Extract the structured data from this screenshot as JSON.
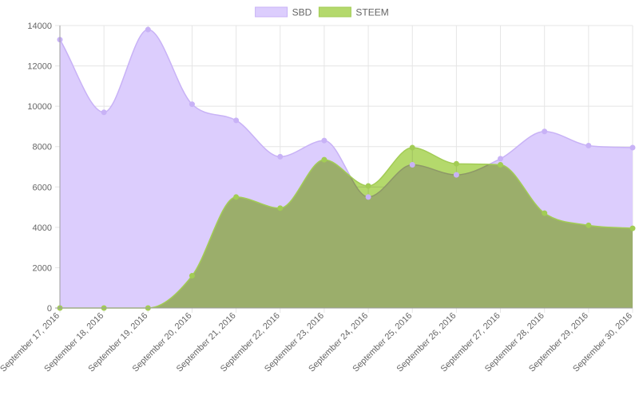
{
  "chart_data": {
    "type": "area",
    "categories": [
      "September 17, 2016",
      "September 18, 2016",
      "September 19, 2016",
      "September 20, 2016",
      "September 21, 2016",
      "September 22, 2016",
      "September 23, 2016",
      "September 24, 2016",
      "September 25, 2016",
      "September 26, 2016",
      "September 27, 2016",
      "September 28, 2016",
      "September 29, 2016",
      "September 30, 2016"
    ],
    "series": [
      {
        "name": "SBD",
        "values": [
          13300,
          9700,
          13800,
          10100,
          9300,
          7500,
          8300,
          5500,
          7100,
          6600,
          7400,
          8750,
          8050,
          7950
        ],
        "fill": "#dccdfd",
        "stroke": "#c8b2f6"
      },
      {
        "name": "STEEM",
        "values": [
          0,
          0,
          0,
          1600,
          5500,
          4950,
          7350,
          6050,
          7950,
          7150,
          7100,
          4700,
          4100,
          3950
        ],
        "fill": "#b4d96c",
        "stroke": "#a2cc55"
      }
    ],
    "ylim": [
      0,
      14000
    ],
    "yticks": [
      "0",
      "2000",
      "4000",
      "6000",
      "8000",
      "10000",
      "12000",
      "14000"
    ],
    "legend": "top-center",
    "grid": true
  }
}
